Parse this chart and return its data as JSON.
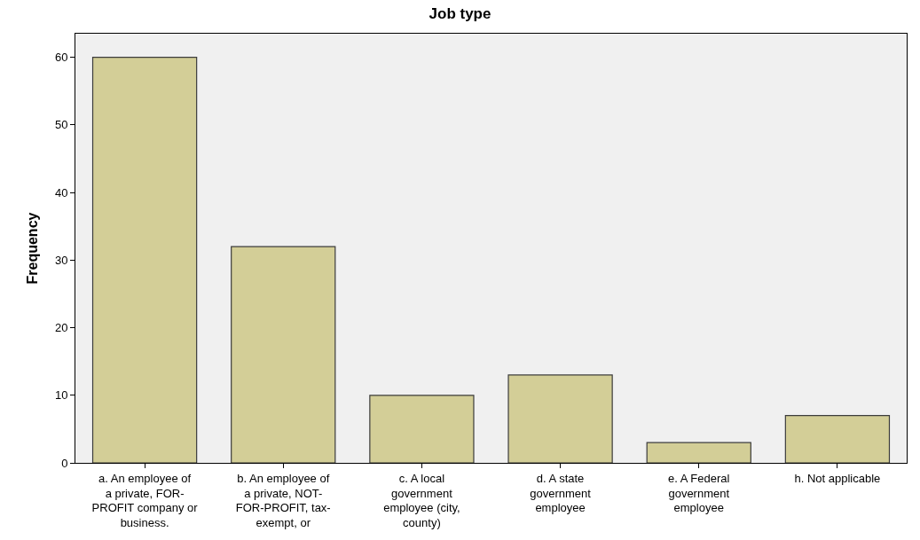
{
  "chart_data": {
    "type": "bar",
    "title": "Job type",
    "ylabel": "Frequency",
    "categories": [
      "a. An employee of a private, FOR-PROFIT company or business.",
      "b. An employee of a private, NOT-FOR-PROFIT, tax-exempt, or",
      "c. A local government employee (city, county)",
      "d. A state government employee",
      "e. A Federal government employee",
      "h. Not applicable"
    ],
    "values": [
      60,
      32,
      10,
      13,
      3,
      7
    ],
    "color": "#d3ce97",
    "ylim": [
      0,
      63.5
    ],
    "yticks": [
      0,
      10,
      20,
      30,
      40,
      50,
      60
    ],
    "grid": false,
    "legend": false
  }
}
